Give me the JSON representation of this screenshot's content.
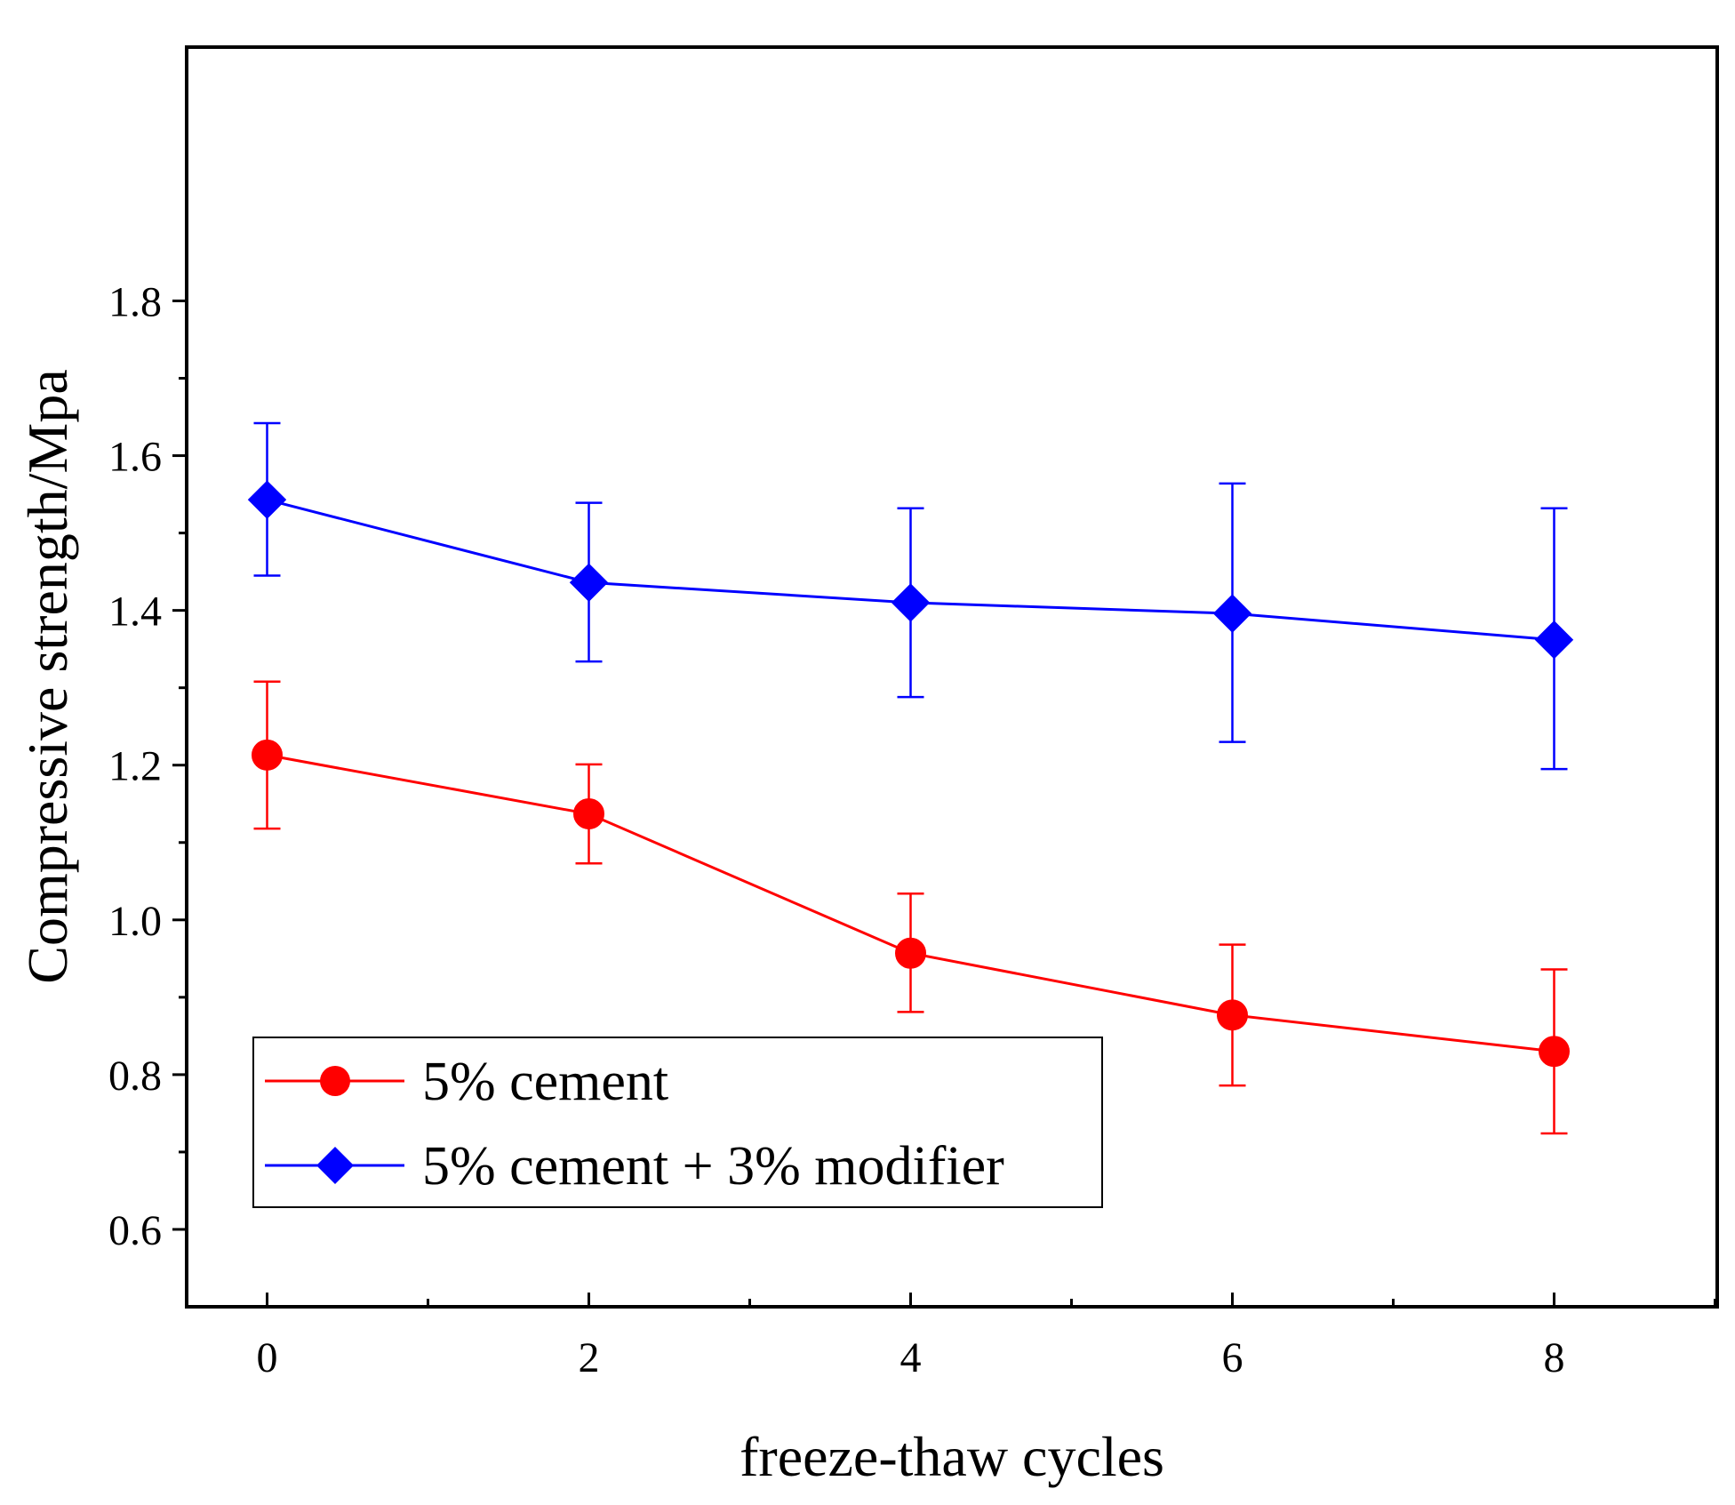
{
  "chart_data": {
    "type": "line",
    "title": "",
    "xlabel": "freeze-thaw cycles",
    "ylabel": "Compressive strength/Mpa",
    "xlim": [
      -0.5,
      9.2
    ],
    "ylim": [
      0.5,
      1.8
    ],
    "x_ticks": [
      0,
      2,
      4,
      6,
      8
    ],
    "x_tick_labels": [
      "0",
      "2",
      "4",
      "6",
      "8"
    ],
    "y_ticks": [
      0.6,
      0.8,
      1.0,
      1.2,
      1.4,
      1.6,
      1.8
    ],
    "y_tick_labels": [
      "0.6",
      "0.8",
      "1.0",
      "1.2",
      "1.4",
      "1.6",
      "1.8"
    ],
    "grid": false,
    "legend_position": "lower-left",
    "x": [
      0,
      2,
      4,
      6,
      8
    ],
    "series": [
      {
        "name": "5% cement",
        "color": "#ff0000",
        "marker": "circle",
        "values": [
          1.213,
          1.137,
          0.957,
          0.877,
          0.83
        ],
        "error_upper": [
          1.308,
          1.201,
          1.034,
          0.968,
          0.936
        ],
        "error_lower": [
          1.118,
          1.073,
          0.881,
          0.786,
          0.724
        ]
      },
      {
        "name": "5% cement + 3% modifier",
        "color": "#0000ff",
        "marker": "diamond",
        "values": [
          1.543,
          1.436,
          1.41,
          1.396,
          1.362
        ],
        "error_upper": [
          1.642,
          1.539,
          1.532,
          1.564,
          1.532
        ],
        "error_lower": [
          1.445,
          1.334,
          1.288,
          1.23,
          1.195
        ]
      }
    ]
  }
}
